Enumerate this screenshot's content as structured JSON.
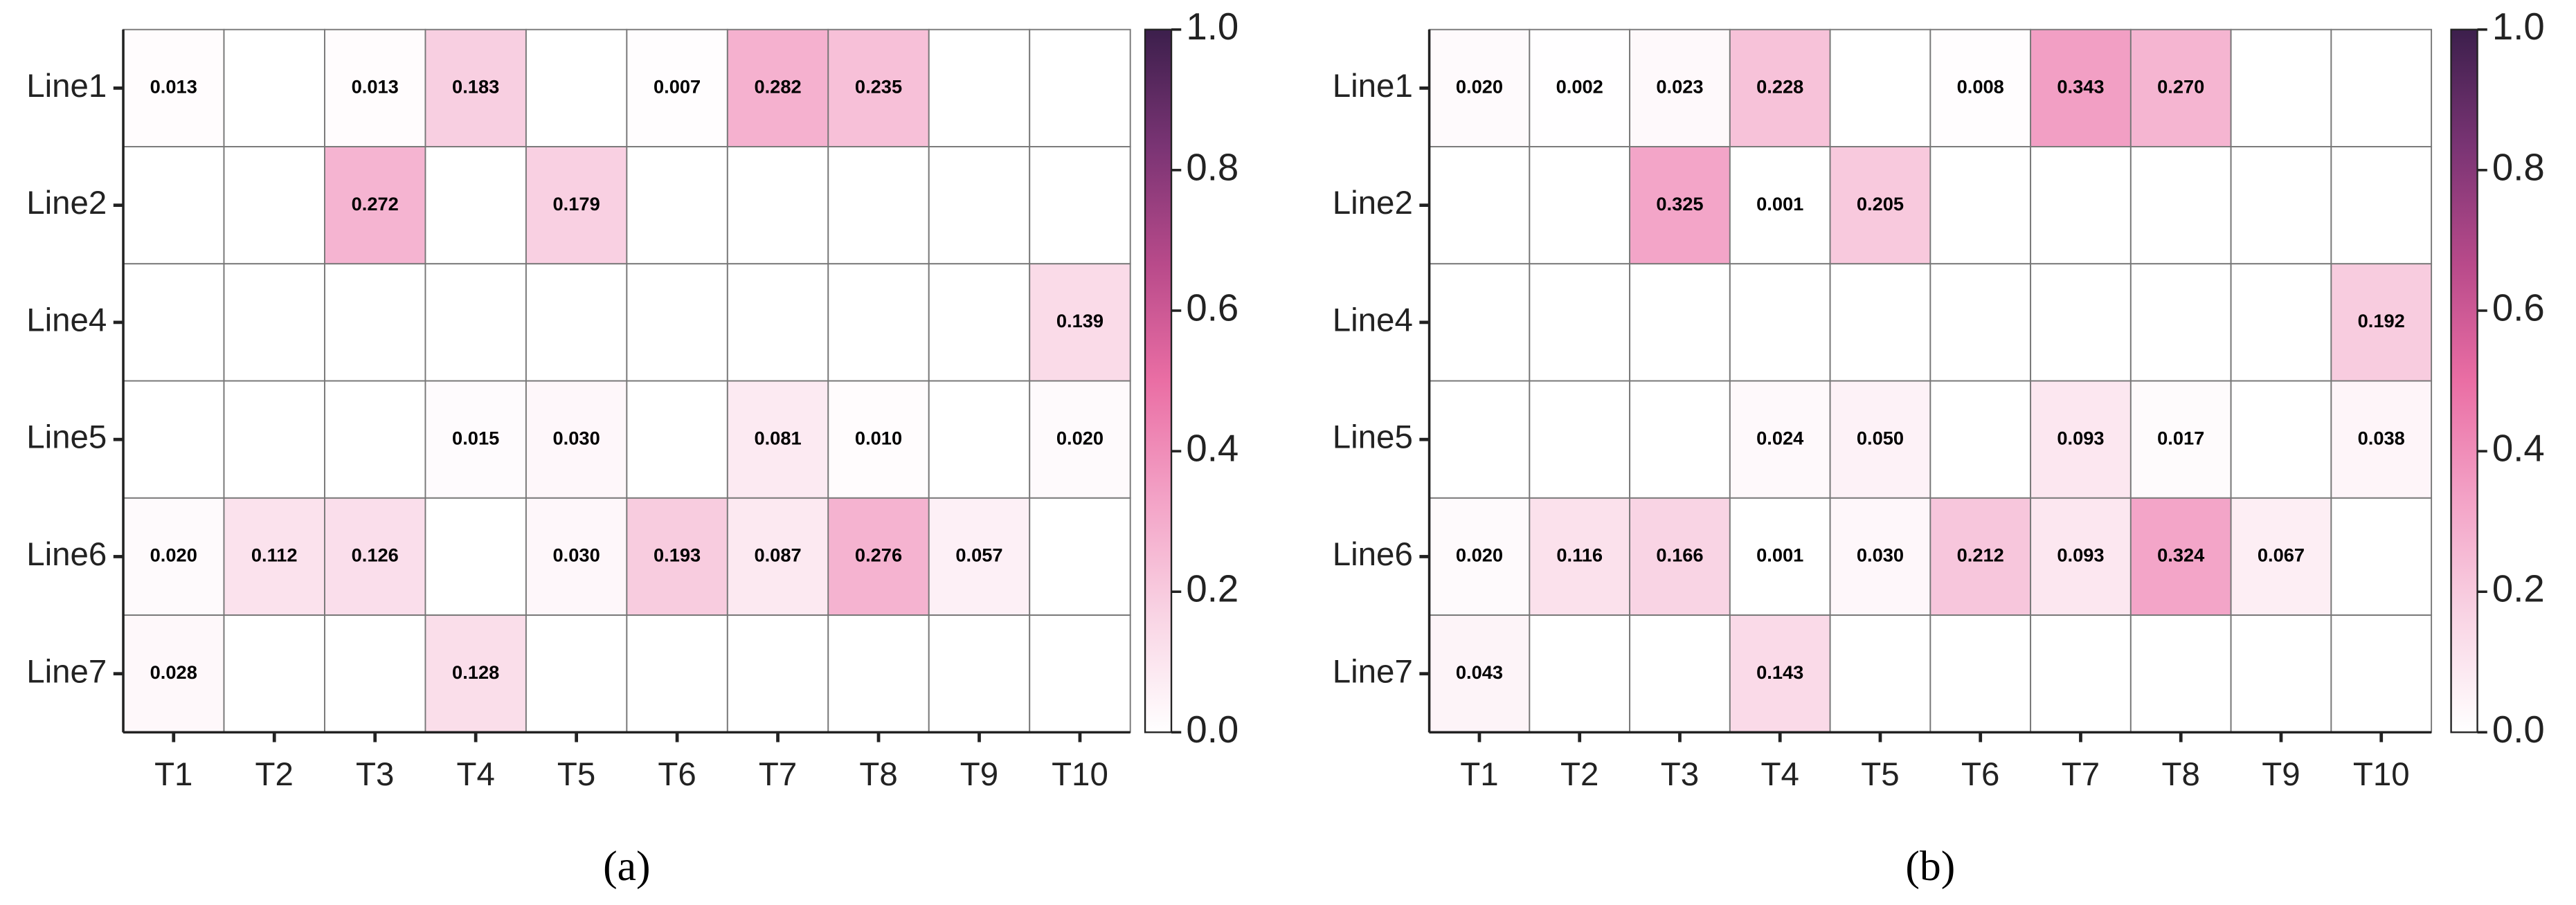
{
  "chart_data": [
    {
      "type": "heatmap",
      "title": "(a)",
      "x_categories": [
        "T1",
        "T2",
        "T3",
        "T4",
        "T5",
        "T6",
        "T7",
        "T8",
        "T9",
        "T10"
      ],
      "y_categories": [
        "Line1",
        "Line2",
        "Line4",
        "Line5",
        "Line6",
        "Line7"
      ],
      "values": [
        [
          0.013,
          null,
          0.013,
          0.183,
          null,
          0.007,
          0.282,
          0.235,
          null,
          null
        ],
        [
          null,
          null,
          0.272,
          null,
          0.179,
          null,
          null,
          null,
          null,
          null
        ],
        [
          null,
          null,
          null,
          null,
          null,
          null,
          null,
          null,
          null,
          0.139
        ],
        [
          null,
          null,
          null,
          0.015,
          0.03,
          null,
          0.081,
          0.01,
          null,
          0.02
        ],
        [
          0.02,
          0.112,
          0.126,
          null,
          0.03,
          0.193,
          0.087,
          0.276,
          0.057,
          null
        ],
        [
          0.028,
          null,
          null,
          0.128,
          null,
          null,
          null,
          null,
          null,
          null
        ]
      ],
      "value_labels": [
        [
          "0.013",
          null,
          "0.013",
          "0.183",
          null,
          "0.007",
          "0.282",
          "0.235",
          null,
          null
        ],
        [
          null,
          null,
          "0.272",
          null,
          "0.179",
          null,
          null,
          null,
          null,
          null
        ],
        [
          null,
          null,
          null,
          null,
          null,
          null,
          null,
          null,
          null,
          "0.139"
        ],
        [
          null,
          null,
          null,
          "0.015",
          "0.030",
          null,
          "0.081",
          "0.010",
          null,
          "0.020"
        ],
        [
          "0.020",
          "0.112",
          "0.126",
          null,
          "0.030",
          "0.193",
          "0.087",
          "0.276",
          "0.057",
          null
        ],
        [
          "0.028",
          null,
          null,
          "0.128",
          null,
          null,
          null,
          null,
          null,
          null
        ]
      ],
      "colorbar_lim": [
        0,
        1
      ],
      "colorbar_ticks": [
        {
          "value": 0,
          "label": "0.0"
        },
        0.2,
        0.4,
        0.6,
        0.8,
        {
          "value": 1,
          "label": "1.0"
        }
      ],
      "colormap": [
        "#ffffff",
        "#f9d4e4",
        "#f3a2c6",
        "#ea6ea4",
        "#b84a8a",
        "#7a3474",
        "#3c1f4c"
      ]
    },
    {
      "type": "heatmap",
      "title": "(b)",
      "x_categories": [
        "T1",
        "T2",
        "T3",
        "T4",
        "T5",
        "T6",
        "T7",
        "T8",
        "T9",
        "T10"
      ],
      "y_categories": [
        "Line1",
        "Line2",
        "Line4",
        "Line5",
        "Line6",
        "Line7"
      ],
      "values": [
        [
          0.02,
          0.002,
          0.023,
          0.228,
          null,
          0.008,
          0.343,
          0.27,
          null,
          null
        ],
        [
          null,
          null,
          0.325,
          0.001,
          0.205,
          null,
          null,
          null,
          null,
          null
        ],
        [
          null,
          null,
          null,
          null,
          null,
          null,
          null,
          null,
          null,
          0.192
        ],
        [
          null,
          null,
          null,
          0.024,
          0.05,
          null,
          0.093,
          0.017,
          null,
          0.038
        ],
        [
          0.02,
          0.116,
          0.166,
          0.001,
          0.03,
          0.212,
          0.093,
          0.324,
          0.067,
          null
        ],
        [
          0.043,
          null,
          null,
          0.143,
          null,
          null,
          null,
          null,
          null,
          null
        ]
      ],
      "value_labels": [
        [
          "0.020",
          "0.002",
          "0.023",
          "0.228",
          null,
          "0.008",
          "0.343",
          "0.270",
          null,
          null
        ],
        [
          null,
          null,
          "0.325",
          "0.001",
          "0.205",
          null,
          null,
          null,
          null,
          null
        ],
        [
          null,
          null,
          null,
          null,
          null,
          null,
          null,
          null,
          null,
          "0.192"
        ],
        [
          null,
          null,
          null,
          "0.024",
          "0.050",
          null,
          "0.093",
          "0.017",
          null,
          "0.038"
        ],
        [
          "0.020",
          "0.116",
          "0.166",
          "0.001",
          "0.030",
          "0.212",
          "0.093",
          "0.324",
          "0.067",
          null
        ],
        [
          "0.043",
          null,
          null,
          "0.143",
          null,
          null,
          null,
          null,
          null,
          null
        ]
      ],
      "colorbar_lim": [
        0,
        1
      ],
      "colorbar_ticks": [
        {
          "value": 0,
          "label": "0.0"
        },
        0.2,
        0.4,
        0.6,
        0.8,
        {
          "value": 1,
          "label": "1.0"
        }
      ],
      "colormap": [
        "#ffffff",
        "#f9d4e4",
        "#f3a2c6",
        "#ea6ea4",
        "#b84a8a",
        "#7a3474",
        "#3c1f4c"
      ]
    }
  ]
}
